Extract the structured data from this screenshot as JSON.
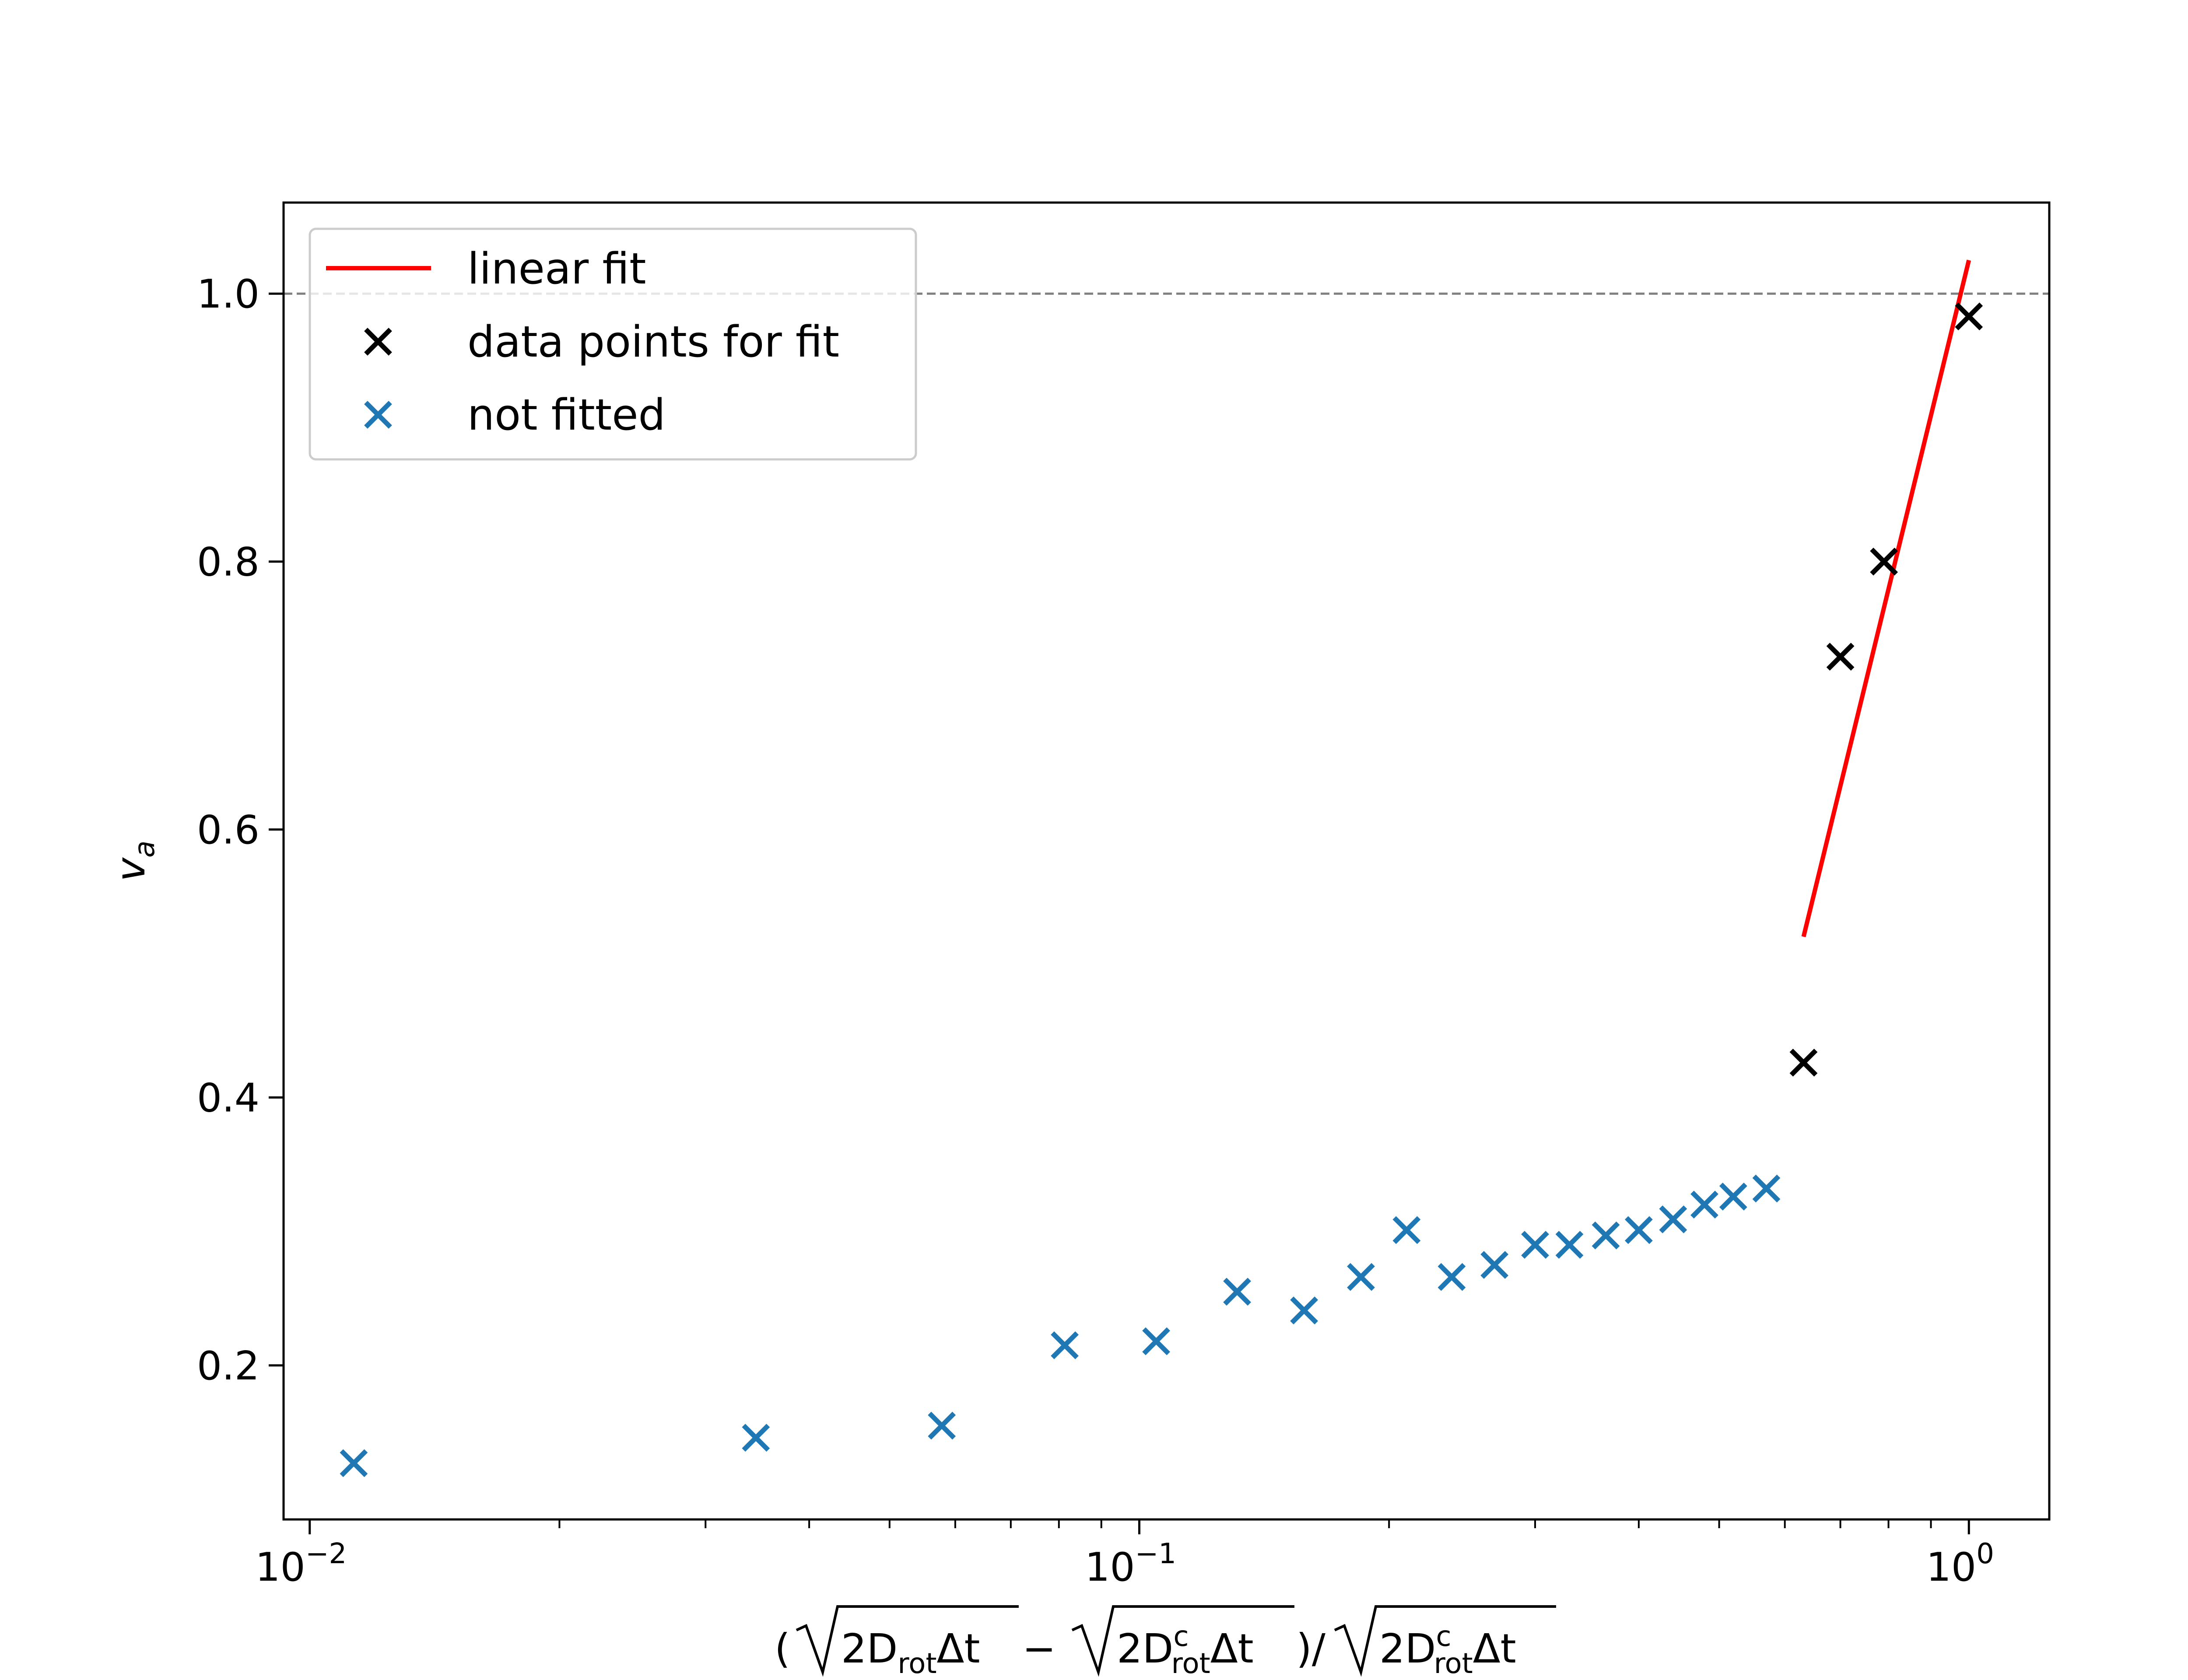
{
  "chart_data": {
    "type": "scatter",
    "x_scale": "log",
    "xlim": [
      0.0093,
      1.25
    ],
    "ylim": [
      0.085,
      1.068
    ],
    "x_ticks": [
      {
        "value": 0.01,
        "base": "10",
        "exp": "−2"
      },
      {
        "value": 0.1,
        "base": "10",
        "exp": "−1"
      },
      {
        "value": 1,
        "base": "10",
        "exp": "0"
      }
    ],
    "y_ticks": [
      {
        "value": 0.2,
        "label": "0.2"
      },
      {
        "value": 0.4,
        "label": "0.4"
      },
      {
        "value": 0.6,
        "label": "0.6"
      },
      {
        "value": 0.8,
        "label": "0.8"
      },
      {
        "value": 1.0,
        "label": "1.0"
      }
    ],
    "ylabel": {
      "main": "v",
      "sub": "a"
    },
    "xlabel": {
      "open": "(",
      "t1_pre": "2D",
      "t1_sub": "rot",
      "t1_post": "Δt",
      "minus": " − ",
      "t2_pre": "2D",
      "t2_sup": "c",
      "t2_sub": "rot",
      "t2_post": "Δt",
      "close": ")/",
      "t3_pre": "2D",
      "t3_sup": "c",
      "t3_sub": "rot",
      "t3_post": "Δt"
    },
    "reference_line": {
      "y": 1.0,
      "color": "#808080",
      "style": "dashed"
    },
    "legend": {
      "placement": "upper-left",
      "entries": [
        {
          "label": "linear fit",
          "kind": "line",
          "color": "#ff0000"
        },
        {
          "label": "data points for fit",
          "kind": "marker",
          "color": "#000000"
        },
        {
          "label": "not fitted",
          "kind": "marker",
          "color": "#1f77b4"
        }
      ]
    },
    "series": [
      {
        "name": "linear fit",
        "kind": "line",
        "color": "#ff0000",
        "x": [
          0.632,
          1.0
        ],
        "y": [
          0.52,
          1.025
        ]
      },
      {
        "name": "data points for fit",
        "kind": "marker",
        "color": "#000000",
        "x": [
          0.632,
          0.7,
          0.79,
          1.0
        ],
        "y": [
          0.426,
          0.729,
          0.8,
          0.983
        ]
      },
      {
        "name": "not fitted",
        "kind": "marker",
        "color": "#1f77b4",
        "x": [
          0.0113,
          0.0345,
          0.0578,
          0.0813,
          0.1048,
          0.1312,
          0.158,
          0.185,
          0.21,
          0.238,
          0.268,
          0.3,
          0.33,
          0.365,
          0.4,
          0.44,
          0.48,
          0.52,
          0.57
        ],
        "y": [
          0.127,
          0.146,
          0.155,
          0.215,
          0.218,
          0.255,
          0.241,
          0.266,
          0.301,
          0.266,
          0.275,
          0.29,
          0.29,
          0.297,
          0.301,
          0.309,
          0.32,
          0.326,
          0.332
        ]
      }
    ]
  }
}
